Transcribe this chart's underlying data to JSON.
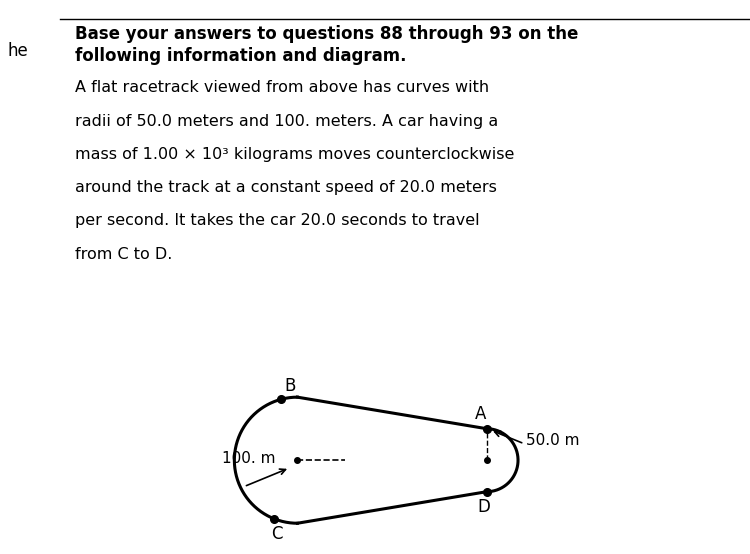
{
  "title_line1": "Base your answers to questions 88 through 93 on the",
  "title_line2": "following information and diagram.",
  "body_line1": "A flat racetrack viewed from above has curves with",
  "body_line2": "radii of 50.0 meters and 100. meters. A car having a",
  "body_line3": "mass of 1.00 × 10³ kilograms moves counterclockwise",
  "body_line4": "around the track at a constant speed of 20.0 meters",
  "body_line5": "per second. It takes the car 20.0 seconds to travel",
  "body_line6": "from C to D.",
  "label_A": "A",
  "label_B": "B",
  "label_C": "C",
  "label_D": "D",
  "label_50m": "50.0 m",
  "label_100m": "100. m",
  "left_margin_text": "he",
  "bg_color": "#ffffff",
  "text_color": "#000000",
  "track_color": "#000000"
}
